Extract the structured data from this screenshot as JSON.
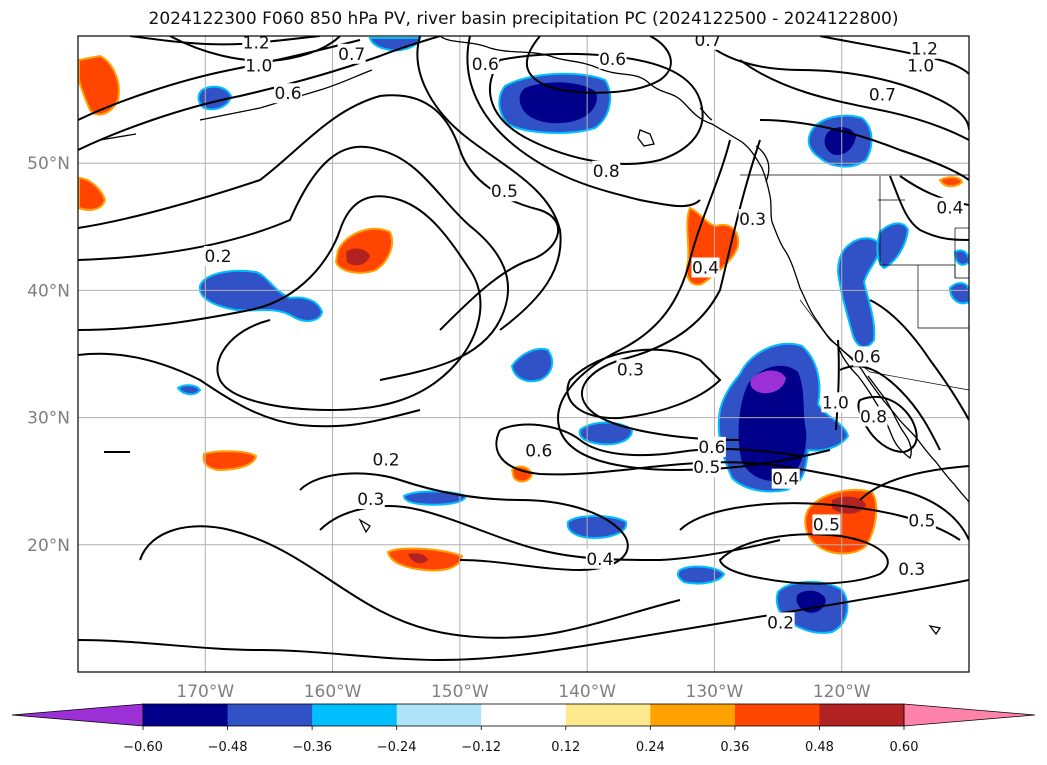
{
  "title": "2024122300 F060 850 hPa PV, river basin precipitation PC (2024122500 - 2024122800)",
  "map": {
    "lon_range": [
      -180,
      -110
    ],
    "lat_range": [
      10,
      60
    ],
    "lon_ticks": [
      {
        "lon": -170,
        "label": "170°W"
      },
      {
        "lon": -160,
        "label": "160°W"
      },
      {
        "lon": -150,
        "label": "150°W"
      },
      {
        "lon": -140,
        "label": "140°W"
      },
      {
        "lon": -130,
        "label": "130°W"
      },
      {
        "lon": -120,
        "label": "120°W"
      }
    ],
    "lat_ticks": [
      {
        "lat": 50,
        "label": "50°N"
      },
      {
        "lat": 40,
        "label": "40°N"
      },
      {
        "lat": 30,
        "label": "30°N"
      },
      {
        "lat": 20,
        "label": "20°N"
      }
    ],
    "grid": true,
    "contour_labels": [
      {
        "text": "1.2",
        "lon": -166.0,
        "lat": 59.5
      },
      {
        "text": "1.0",
        "lon": -165.8,
        "lat": 57.7
      },
      {
        "text": "0.6",
        "lon": -163.5,
        "lat": 55.5
      },
      {
        "text": "0.7",
        "lon": -158.5,
        "lat": 58.6
      },
      {
        "text": "0.6",
        "lon": -148.0,
        "lat": 57.8
      },
      {
        "text": "0.6",
        "lon": -138.0,
        "lat": 58.2
      },
      {
        "text": "0.7",
        "lon": -130.5,
        "lat": 59.7
      },
      {
        "text": "1.2",
        "lon": -113.5,
        "lat": 59.0
      },
      {
        "text": "1.0",
        "lon": -113.8,
        "lat": 57.7
      },
      {
        "text": "0.7",
        "lon": -116.8,
        "lat": 55.4
      },
      {
        "text": "0.8",
        "lon": -138.5,
        "lat": 49.4
      },
      {
        "text": "0.5",
        "lon": -146.5,
        "lat": 47.8
      },
      {
        "text": "0.3",
        "lon": -127.0,
        "lat": 45.6
      },
      {
        "text": "0.4",
        "lon": -130.7,
        "lat": 41.8
      },
      {
        "text": "0.4",
        "lon": -111.5,
        "lat": 46.5
      },
      {
        "text": "0.2",
        "lon": -169.0,
        "lat": 42.7
      },
      {
        "text": "0.3",
        "lon": -136.6,
        "lat": 33.8
      },
      {
        "text": "0.6",
        "lon": -118.0,
        "lat": 34.8
      },
      {
        "text": "1.0",
        "lon": -120.5,
        "lat": 31.2
      },
      {
        "text": "0.8",
        "lon": -117.5,
        "lat": 30.1
      },
      {
        "text": "0.6",
        "lon": -130.2,
        "lat": 27.7
      },
      {
        "text": "0.5",
        "lon": -130.6,
        "lat": 26.1
      },
      {
        "text": "0.4",
        "lon": -124.4,
        "lat": 25.2
      },
      {
        "text": "0.6",
        "lon": -143.8,
        "lat": 27.4
      },
      {
        "text": "0.2",
        "lon": -155.8,
        "lat": 26.7
      },
      {
        "text": "0.3",
        "lon": -157.0,
        "lat": 23.6
      },
      {
        "text": "0.5",
        "lon": -121.2,
        "lat": 21.6
      },
      {
        "text": "0.5",
        "lon": -113.7,
        "lat": 21.9
      },
      {
        "text": "0.3",
        "lon": -114.5,
        "lat": 18.1
      },
      {
        "text": "0.4",
        "lon": -139.0,
        "lat": 18.9
      },
      {
        "text": "0.2",
        "lon": -124.8,
        "lat": 13.9
      }
    ]
  },
  "colorbar": {
    "tick_labels": [
      "−0.60",
      "−0.48",
      "−0.36",
      "−0.24",
      "−0.12",
      "0.12",
      "0.24",
      "0.36",
      "0.48",
      "0.60"
    ],
    "levels": [
      -0.6,
      -0.48,
      -0.36,
      -0.24,
      -0.12,
      0.12,
      0.24,
      0.36,
      0.48,
      0.6
    ],
    "colors": [
      "#9b30d6",
      "#00008b",
      "#3152c7",
      "#00bfff",
      "#afe3fa",
      "#ffffff",
      "#ffe98f",
      "#ffa200",
      "#ff4500",
      "#b22222",
      "#ff82ab"
    ]
  },
  "colors": {
    "coast": "#000000",
    "contour": "#000000",
    "grid": "#b0b0b0"
  }
}
